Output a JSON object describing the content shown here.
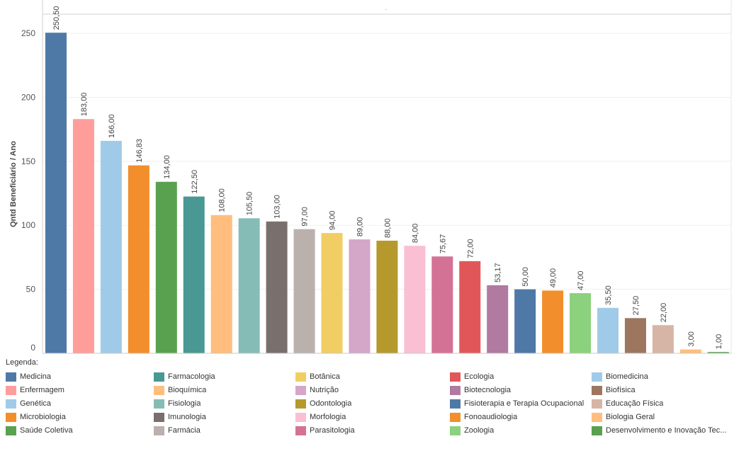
{
  "chart_data": {
    "type": "bar",
    "title": "",
    "header_mark": ".",
    "xlabel": "",
    "ylabel": "Qntd Beneficiário / Ano",
    "ylim": [
      0,
      265
    ],
    "yticks": [
      0,
      50,
      100,
      150,
      200,
      250
    ],
    "grid": true,
    "categories": [
      "Medicina",
      "Enfermagem",
      "Genética",
      "Microbiologia",
      "Saúde Coletiva",
      "Farmacologia",
      "Bioquímica",
      "Fisiologia",
      "Imunologia",
      "Farmácia",
      "Botânica",
      "Nutrição",
      "Odontologia",
      "Morfologia",
      "Parasitologia",
      "Ecologia",
      "Biotecnologia",
      "Fisioterapia e Terapia Ocupacional",
      "Fonoaudiologia",
      "Zoologia",
      "Biomedicina",
      "Biofísica",
      "Educação Física",
      "Biologia Geral",
      "Desenvolvimento e Inovação Tec..."
    ],
    "values": [
      250.5,
      183,
      166,
      146.83,
      134,
      122.5,
      108,
      105.5,
      103,
      97,
      94,
      89,
      88,
      84,
      75.67,
      72,
      53.17,
      50,
      49,
      47,
      35.5,
      27.5,
      22,
      3,
      1
    ],
    "value_labels": [
      "250,50",
      "183,00",
      "166,00",
      "146,83",
      "134,00",
      "122,50",
      "108,00",
      "105,50",
      "103,00",
      "97,00",
      "94,00",
      "89,00",
      "88,00",
      "84,00",
      "75,67",
      "72,00",
      "53,17",
      "50,00",
      "49,00",
      "47,00",
      "35,50",
      "27,50",
      "22,00",
      "3,00",
      "1,00"
    ],
    "colors": [
      "#4e79a7",
      "#ff9d9a",
      "#a0cbe8",
      "#f28e2b",
      "#59a14f",
      "#499894",
      "#ffbe7d",
      "#86bcb6",
      "#79706e",
      "#bab0ac",
      "#f1ce63",
      "#d4a6c8",
      "#b6992d",
      "#fabfd2",
      "#d37295",
      "#e15759",
      "#b07aa1",
      "#4e79a7",
      "#f28e2b",
      "#8cd17d",
      "#a0cbe8",
      "#9d7660",
      "#d7b5a6",
      "#ffbe7d",
      "#59a14f"
    ],
    "legend_position": "bottom"
  },
  "legend": {
    "title": "Legenda:",
    "items": [
      {
        "label": "Medicina",
        "color": "#4e79a7"
      },
      {
        "label": "Farmacologia",
        "color": "#499894"
      },
      {
        "label": "Botânica",
        "color": "#f1ce63"
      },
      {
        "label": "Ecologia",
        "color": "#e15759"
      },
      {
        "label": "Biomedicina",
        "color": "#a0cbe8"
      },
      {
        "label": "Enfermagem",
        "color": "#ff9d9a"
      },
      {
        "label": "Bioquímica",
        "color": "#ffbe7d"
      },
      {
        "label": "Nutrição",
        "color": "#d4a6c8"
      },
      {
        "label": "Biotecnologia",
        "color": "#b07aa1"
      },
      {
        "label": "Biofísica",
        "color": "#9d7660"
      },
      {
        "label": "Genética",
        "color": "#a0cbe8"
      },
      {
        "label": "Fisiologia",
        "color": "#86bcb6"
      },
      {
        "label": "Odontologia",
        "color": "#b6992d"
      },
      {
        "label": "Fisioterapia e Terapia Ocupacional",
        "color": "#4e79a7"
      },
      {
        "label": "Educação Física",
        "color": "#d7b5a6"
      },
      {
        "label": "Microbiologia",
        "color": "#f28e2b"
      },
      {
        "label": "Imunologia",
        "color": "#79706e"
      },
      {
        "label": "Morfologia",
        "color": "#fabfd2"
      },
      {
        "label": "Fonoaudiologia",
        "color": "#f28e2b"
      },
      {
        "label": "Biologia Geral",
        "color": "#ffbe7d"
      },
      {
        "label": "Saúde Coletiva",
        "color": "#59a14f"
      },
      {
        "label": "Farmácia",
        "color": "#bab0ac"
      },
      {
        "label": "Parasitologia",
        "color": "#d37295"
      },
      {
        "label": "Zoologia",
        "color": "#8cd17d"
      },
      {
        "label": "Desenvolvimento e Inovação Tec...",
        "color": "#59a14f"
      }
    ]
  }
}
